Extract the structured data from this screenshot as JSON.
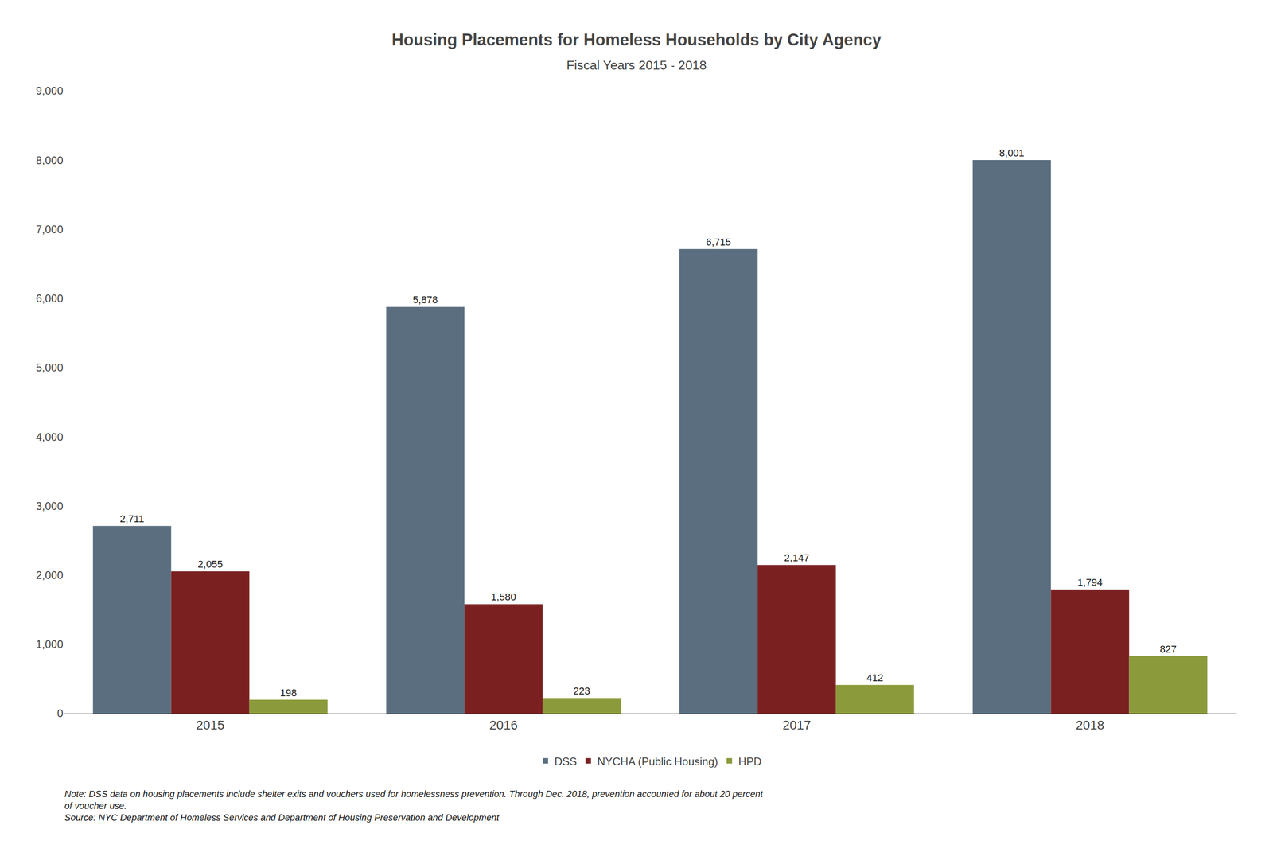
{
  "chart_data": {
    "type": "bar",
    "title": "Housing Placements for Homeless Households by City Agency",
    "subtitle": "Fiscal Years 2015 - 2018",
    "categories": [
      "2015",
      "2016",
      "2017",
      "2018"
    ],
    "series": [
      {
        "name": "DSS",
        "color": "#5a6e7f",
        "values": [
          2711,
          5878,
          6715,
          8001
        ],
        "value_labels": [
          "2,711",
          "5,878",
          "6,715",
          "8,001"
        ]
      },
      {
        "name": "NYCHA (Public Housing)",
        "color": "#7b2020",
        "values": [
          2055,
          1580,
          2147,
          1794
        ],
        "value_labels": [
          "2,055",
          "1,580",
          "2,147",
          "1,794"
        ]
      },
      {
        "name": "HPD",
        "color": "#8b9a3a",
        "values": [
          198,
          223,
          412,
          827
        ],
        "value_labels": [
          "198",
          "223",
          "412",
          "827"
        ]
      }
    ],
    "ylim": [
      0,
      9000
    ],
    "yticks": [
      0,
      {
        "value": 1000,
        "label": "1,000"
      },
      {
        "value": 2000,
        "label": "2,000"
      },
      {
        "value": 3000,
        "label": "3,000"
      },
      {
        "value": 4000,
        "label": "4,000"
      },
      {
        "value": 5000,
        "label": "5,000"
      },
      {
        "value": 6000,
        "label": "6,000"
      },
      {
        "value": 7000,
        "label": "7,000"
      },
      {
        "value": 8000,
        "label": "8,000"
      },
      {
        "value": 9000,
        "label": "9,000"
      }
    ],
    "grid": false,
    "legend": "bottom",
    "data_labels": true,
    "annotations": [
      "Note: DSS data on housing placements include shelter exits and vouchers used for homelessness prevention. Through Dec. 2018, prevention accounted for about 20 percent",
      "of voucher use.",
      "Source: NYC Department of Homeless Services and Department of Housing Preservation and Development"
    ]
  }
}
